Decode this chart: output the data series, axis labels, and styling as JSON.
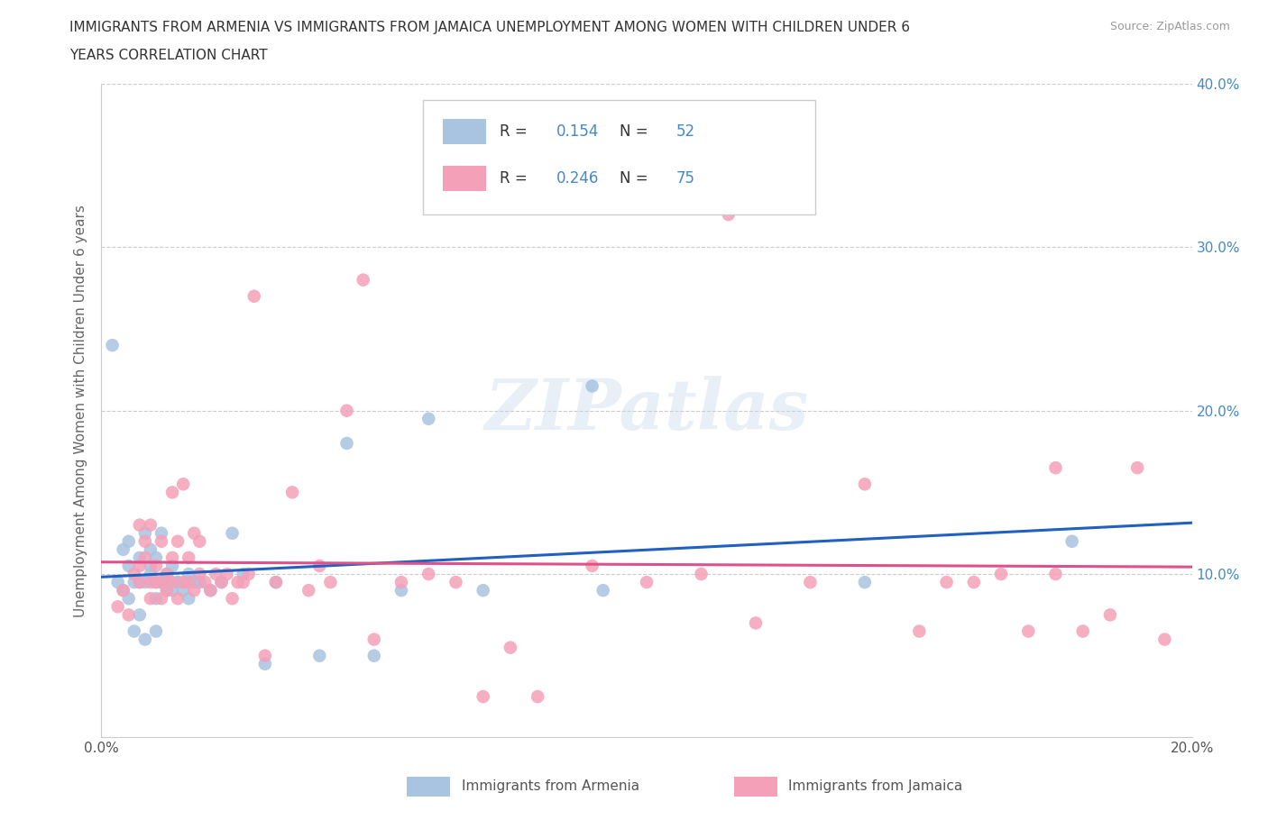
{
  "title_line1": "IMMIGRANTS FROM ARMENIA VS IMMIGRANTS FROM JAMAICA UNEMPLOYMENT AMONG WOMEN WITH CHILDREN UNDER 6",
  "title_line2": "YEARS CORRELATION CHART",
  "source": "Source: ZipAtlas.com",
  "ylabel": "Unemployment Among Women with Children Under 6 years",
  "xlim": [
    0.0,
    0.2
  ],
  "ylim": [
    0.0,
    0.4
  ],
  "xticks": [
    0.0,
    0.05,
    0.1,
    0.15,
    0.2
  ],
  "yticks": [
    0.0,
    0.1,
    0.2,
    0.3,
    0.4
  ],
  "color_armenia": "#a8c4e0",
  "color_jamaica": "#f4a0b8",
  "line_color_armenia": "#2060c0",
  "line_color_jamaica": "#e0508a",
  "R_armenia": 0.154,
  "N_armenia": 52,
  "R_jamaica": 0.246,
  "N_jamaica": 75,
  "watermark": "ZIPatlas",
  "background_color": "#ffffff",
  "grid_color": "#cccccc",
  "legend_label_armenia": "Immigrants from Armenia",
  "legend_label_jamaica": "Immigrants from Jamaica",
  "armenia_x": [
    0.002,
    0.003,
    0.004,
    0.004,
    0.005,
    0.005,
    0.005,
    0.006,
    0.006,
    0.007,
    0.007,
    0.007,
    0.008,
    0.008,
    0.008,
    0.009,
    0.009,
    0.009,
    0.01,
    0.01,
    0.01,
    0.01,
    0.011,
    0.011,
    0.012,
    0.012,
    0.012,
    0.013,
    0.013,
    0.014,
    0.014,
    0.015,
    0.016,
    0.016,
    0.017,
    0.018,
    0.02,
    0.022,
    0.024,
    0.026,
    0.03,
    0.032,
    0.04,
    0.045,
    0.05,
    0.055,
    0.06,
    0.07,
    0.09,
    0.092,
    0.14,
    0.178
  ],
  "armenia_y": [
    0.24,
    0.095,
    0.09,
    0.115,
    0.105,
    0.12,
    0.085,
    0.095,
    0.065,
    0.11,
    0.075,
    0.095,
    0.125,
    0.095,
    0.06,
    0.105,
    0.1,
    0.115,
    0.085,
    0.095,
    0.11,
    0.065,
    0.095,
    0.125,
    0.09,
    0.095,
    0.1,
    0.09,
    0.105,
    0.095,
    0.095,
    0.09,
    0.085,
    0.1,
    0.095,
    0.095,
    0.09,
    0.095,
    0.125,
    0.1,
    0.045,
    0.095,
    0.05,
    0.18,
    0.05,
    0.09,
    0.195,
    0.09,
    0.215,
    0.09,
    0.095,
    0.12
  ],
  "jamaica_x": [
    0.003,
    0.004,
    0.005,
    0.006,
    0.007,
    0.007,
    0.007,
    0.008,
    0.008,
    0.009,
    0.009,
    0.009,
    0.01,
    0.01,
    0.011,
    0.011,
    0.011,
    0.012,
    0.012,
    0.013,
    0.013,
    0.013,
    0.014,
    0.014,
    0.015,
    0.015,
    0.016,
    0.016,
    0.017,
    0.017,
    0.018,
    0.018,
    0.019,
    0.02,
    0.021,
    0.022,
    0.023,
    0.024,
    0.025,
    0.026,
    0.027,
    0.028,
    0.03,
    0.032,
    0.035,
    0.038,
    0.04,
    0.042,
    0.045,
    0.048,
    0.05,
    0.055,
    0.06,
    0.065,
    0.07,
    0.075,
    0.08,
    0.09,
    0.1,
    0.11,
    0.115,
    0.12,
    0.13,
    0.14,
    0.15,
    0.155,
    0.16,
    0.165,
    0.17,
    0.175,
    0.175,
    0.18,
    0.185,
    0.19,
    0.195
  ],
  "jamaica_y": [
    0.08,
    0.09,
    0.075,
    0.1,
    0.095,
    0.13,
    0.105,
    0.12,
    0.11,
    0.095,
    0.085,
    0.13,
    0.105,
    0.095,
    0.12,
    0.095,
    0.085,
    0.09,
    0.1,
    0.11,
    0.095,
    0.15,
    0.12,
    0.085,
    0.095,
    0.155,
    0.095,
    0.11,
    0.09,
    0.125,
    0.1,
    0.12,
    0.095,
    0.09,
    0.1,
    0.095,
    0.1,
    0.085,
    0.095,
    0.095,
    0.1,
    0.27,
    0.05,
    0.095,
    0.15,
    0.09,
    0.105,
    0.095,
    0.2,
    0.28,
    0.06,
    0.095,
    0.1,
    0.095,
    0.025,
    0.055,
    0.025,
    0.105,
    0.095,
    0.1,
    0.32,
    0.07,
    0.095,
    0.155,
    0.065,
    0.095,
    0.095,
    0.1,
    0.065,
    0.165,
    0.1,
    0.065,
    0.075,
    0.165,
    0.06
  ]
}
